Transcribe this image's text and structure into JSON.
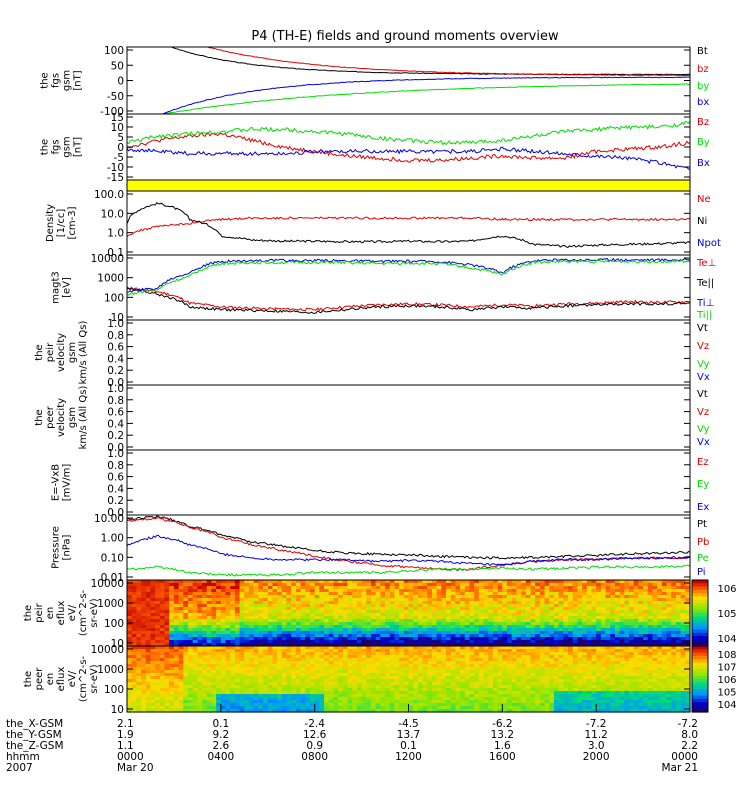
{
  "title": "P4 (TH-E) fields and ground moments overview",
  "colors": {
    "black": "#000000",
    "red": "#e00000",
    "green": "#00dd00",
    "blue": "#0000e0",
    "yellow": "#ffff00"
  },
  "chart_data": [
    {
      "type": "line",
      "ylabel": [
        "the",
        "fgs",
        "gsm",
        "[nT]"
      ],
      "ylim": [
        -100,
        100
      ],
      "yscale": "linear",
      "yticks": [
        "100",
        "50",
        "0",
        "-50",
        "-100"
      ],
      "series": [
        {
          "name": "Bt",
          "color": "black",
          "shape": "decay_pos",
          "start": 160,
          "end": 18,
          "rate": 7
        },
        {
          "name": "bz",
          "color": "red",
          "shape": "decay_pos",
          "start": 190,
          "end": 14,
          "rate": 5
        },
        {
          "name": "by",
          "color": "green",
          "shape": "decay_neg",
          "start": -120,
          "end": -5,
          "rate": 3
        },
        {
          "name": "bx",
          "color": "blue",
          "shape": "decay_neg",
          "start": -150,
          "end": 10,
          "rate": 6
        }
      ]
    },
    {
      "type": "line",
      "ylabel": [
        "the",
        "fgs",
        "gsm",
        "[nT]"
      ],
      "ylim": [
        -15,
        15
      ],
      "yscale": "linear",
      "yticks": [
        "15",
        "10",
        "5",
        "0",
        "-5",
        "-10",
        "-15"
      ],
      "series": [
        {
          "name": "Bz",
          "color": "red",
          "values": [
            0,
            3,
            5,
            6,
            3,
            0,
            -2,
            -4,
            -5,
            -6,
            -6,
            -5,
            -4,
            -5,
            -5,
            -2,
            -1,
            0,
            2
          ]
        },
        {
          "name": "By",
          "color": "green",
          "values": [
            2,
            5,
            6,
            7,
            8,
            8,
            7,
            6,
            4,
            3,
            2,
            2,
            3,
            5,
            7,
            8,
            9,
            9,
            11
          ]
        },
        {
          "name": "Bx",
          "color": "blue",
          "values": [
            -1,
            -2,
            -3,
            -3,
            -3,
            -3,
            -2,
            -2,
            -2,
            -2,
            -2,
            -2,
            -1,
            -2,
            -3,
            -4,
            -5,
            -7,
            -10
          ]
        }
      ]
    },
    {
      "type": "line",
      "ylabel": [
        "Density",
        "[1/cc]",
        "[cm-3]"
      ],
      "ylim": [
        0.05,
        200
      ],
      "yscale": "log",
      "yticks": [
        "100.0",
        "10.0",
        "1.0",
        "0.1"
      ],
      "series": [
        {
          "name": "Ne",
          "color": "red",
          "values": [
            0.6,
            2,
            3,
            5,
            6,
            6,
            6,
            6,
            6,
            6,
            6,
            6,
            5,
            5,
            5,
            5,
            5,
            5,
            5
          ]
        },
        {
          "name": "Ni",
          "color": "black",
          "values": [
            3,
            40,
            5,
            0.6,
            0.35,
            0.3,
            0.3,
            0.28,
            0.28,
            0.3,
            0.28,
            0.3,
            0.6,
            0.2,
            0.15,
            0.18,
            0.2,
            0.22,
            0.25
          ]
        },
        {
          "name": "Npot",
          "color": "blue",
          "values": []
        }
      ]
    },
    {
      "type": "line",
      "ylabel": [
        "magt3",
        "[eV]"
      ],
      "ylim": [
        10,
        10000
      ],
      "yscale": "log",
      "yticks": [
        "10000",
        "1000",
        "100",
        "10"
      ],
      "series": [
        {
          "name": "Te⊥",
          "color": "red",
          "values": [
            300,
            200,
            60,
            40,
            35,
            32,
            30,
            40,
            50,
            55,
            50,
            40,
            50,
            45,
            55,
            60,
            70,
            65,
            70
          ]
        },
        {
          "name": "Te||",
          "color": "black",
          "values": [
            300,
            150,
            40,
            30,
            28,
            25,
            22,
            30,
            40,
            45,
            40,
            30,
            40,
            35,
            45,
            50,
            55,
            55,
            60
          ]
        },
        {
          "name": "Ti⊥",
          "color": "blue",
          "values": [
            200,
            300,
            1500,
            5000,
            5500,
            5500,
            5500,
            5500,
            5000,
            5200,
            5000,
            3500,
            1500,
            5500,
            6000,
            6000,
            6000,
            6000,
            6000
          ]
        },
        {
          "name": "Ti||",
          "color": "green",
          "values": [
            150,
            250,
            1000,
            4000,
            4500,
            4500,
            4500,
            4500,
            4000,
            4200,
            4000,
            2500,
            1200,
            4500,
            5000,
            5000,
            5000,
            5000,
            5000
          ]
        }
      ]
    },
    {
      "type": "line",
      "ylabel": [
        "the",
        "peir",
        "velocity",
        "gsm",
        "km/s (All Qs)"
      ],
      "ylim": [
        0,
        1
      ],
      "yscale": "linear",
      "yticks": [
        "1.0",
        "0.8",
        "0.6",
        "0.4",
        "0.2",
        "0.0"
      ],
      "series": [
        {
          "name": "Vt",
          "color": "black",
          "values": []
        },
        {
          "name": "Vz",
          "color": "red",
          "values": []
        },
        {
          "name": "Vy",
          "color": "green",
          "values": []
        },
        {
          "name": "Vx",
          "color": "blue",
          "values": []
        }
      ]
    },
    {
      "type": "line",
      "ylabel": [
        "the",
        "peer",
        "velocity",
        "gsm",
        "km/s (All Qs)"
      ],
      "ylim": [
        0,
        1
      ],
      "yscale": "linear",
      "yticks": [
        "1.0",
        "0.8",
        "0.6",
        "0.4",
        "0.2",
        "0.0"
      ],
      "series": [
        {
          "name": "Vt",
          "color": "black",
          "values": []
        },
        {
          "name": "Vz",
          "color": "red",
          "values": []
        },
        {
          "name": "Vy",
          "color": "green",
          "values": []
        },
        {
          "name": "Vx",
          "color": "blue",
          "values": []
        }
      ]
    },
    {
      "type": "line",
      "ylabel": [
        "E=-VxB",
        "[mV/m]"
      ],
      "ylim": [
        0,
        1
      ],
      "yscale": "linear",
      "yticks": [
        "1.0",
        "0.8",
        "0.6",
        "0.4",
        "0.2",
        "0.0"
      ],
      "series": [
        {
          "name": "Ez",
          "color": "red",
          "values": []
        },
        {
          "name": "Ey",
          "color": "green",
          "values": []
        },
        {
          "name": "Ex",
          "color": "blue",
          "values": []
        }
      ]
    },
    {
      "type": "line",
      "ylabel": [
        "Pressure",
        "[nPa]"
      ],
      "ylim": [
        0.008,
        25
      ],
      "yscale": "log",
      "yticks": [
        "10.00",
        "1.00",
        "0.10",
        "0.01"
      ],
      "series": [
        {
          "name": "Pt",
          "color": "black",
          "values": [
            15,
            20,
            6,
            2,
            0.9,
            0.5,
            0.3,
            0.22,
            0.2,
            0.18,
            0.15,
            0.13,
            0.12,
            0.13,
            0.15,
            0.17,
            0.2,
            0.22,
            0.25
          ]
        },
        {
          "name": "Pb",
          "color": "red",
          "values": [
            12,
            16,
            5,
            1.5,
            0.6,
            0.3,
            0.15,
            0.08,
            0.05,
            0.04,
            0.03,
            0.03,
            0.05,
            0.08,
            0.1,
            0.1,
            0.12,
            0.12,
            0.13
          ]
        },
        {
          "name": "Pe",
          "color": "green",
          "values": [
            0.03,
            0.04,
            0.02,
            0.015,
            0.015,
            0.015,
            0.02,
            0.02,
            0.02,
            0.025,
            0.03,
            0.03,
            0.035,
            0.03,
            0.035,
            0.04,
            0.04,
            0.04,
            0.045
          ]
        },
        {
          "name": "Pi",
          "color": "blue",
          "values": [
            0.6,
            1.8,
            0.6,
            0.2,
            0.12,
            0.1,
            0.1,
            0.1,
            0.08,
            0.09,
            0.08,
            0.06,
            0.05,
            0.08,
            0.1,
            0.1,
            0.12,
            0.12,
            0.13
          ]
        }
      ]
    },
    {
      "type": "heatmap",
      "ylabel": [
        "the",
        "peir",
        "en",
        "eflux",
        "eV/",
        "(cm^2-s-",
        "sr-eV)"
      ],
      "ylim": [
        5,
        20000
      ],
      "yscale": "log",
      "yticks": [
        "10000",
        "1000",
        "100",
        "10"
      ],
      "colorbar": {
        "ticks": [
          "10^6",
          "10^5",
          "10^4"
        ]
      }
    },
    {
      "type": "heatmap",
      "ylabel": [
        "the",
        "peer",
        "en",
        "eflux",
        "eV/",
        "(cm^2-s-",
        "sr-eV)"
      ],
      "ylim": [
        5,
        20000
      ],
      "yscale": "log",
      "yticks": [
        "10000",
        "1000",
        "100",
        "10"
      ],
      "colorbar": {
        "ticks": [
          "10^8",
          "10^7",
          "10^6",
          "10^5",
          "10^4"
        ]
      }
    }
  ],
  "xaxis": {
    "row_labels": [
      "the_X-GSM",
      "the_Y-GSM",
      "the_Z-GSM",
      "hhmm",
      "2007"
    ],
    "ticks": [
      {
        "vals": [
          "2.1",
          "1.9",
          "1.1",
          "0000",
          "Mar 20"
        ]
      },
      {
        "vals": [
          "0.1",
          "9.2",
          "2.6",
          "0400",
          ""
        ]
      },
      {
        "vals": [
          "-2.4",
          "12.6",
          "0.9",
          "0800",
          ""
        ]
      },
      {
        "vals": [
          "-4.5",
          "13.7",
          "0.1",
          "1200",
          ""
        ]
      },
      {
        "vals": [
          "-6.2",
          "13.2",
          "1.6",
          "1600",
          ""
        ]
      },
      {
        "vals": [
          "-7.2",
          "11.2",
          "3.0",
          "2000",
          ""
        ]
      },
      {
        "vals": [
          "-7.2",
          "8.0",
          "2.2",
          "0000",
          "Mar 21"
        ]
      }
    ]
  }
}
